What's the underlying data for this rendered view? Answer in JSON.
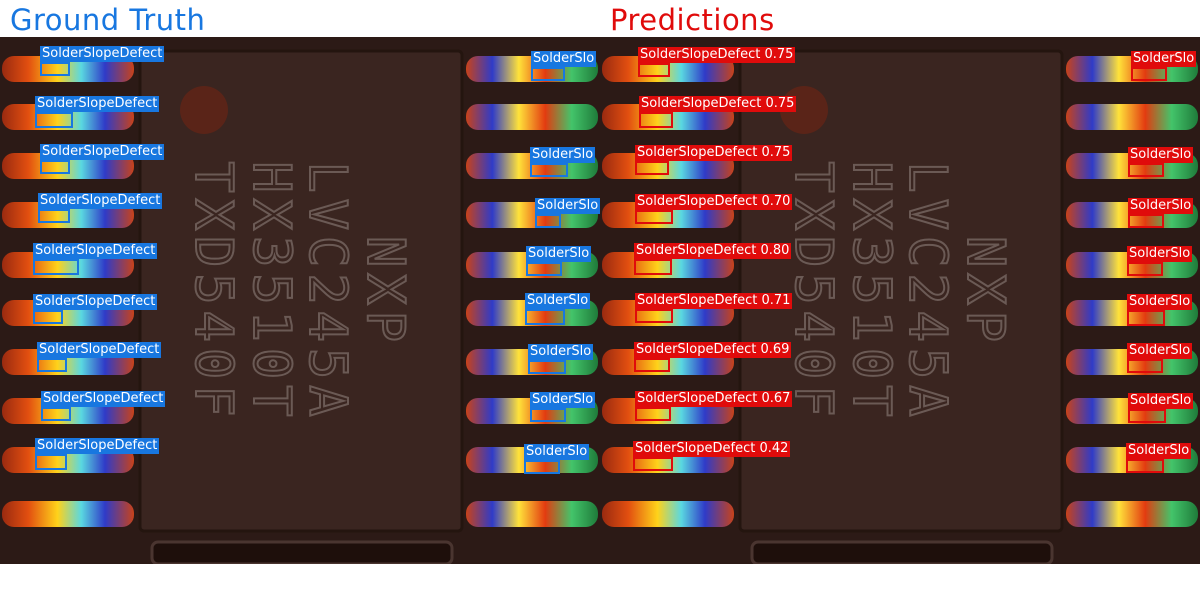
{
  "titles": {
    "ground_truth": "Ground Truth",
    "predictions": "Predictions"
  },
  "colors": {
    "ground_truth": "#1877e0",
    "predictions": "#e00b0b",
    "board": "#2c1a16",
    "chip": "#3a2520",
    "chip_text": "#6b5a55"
  },
  "chip_marking": [
    "NXP",
    "LVC245A",
    "HX3510T",
    "TXD540F"
  ],
  "ground_truth": {
    "left_label": "SolderSlopeDefect",
    "right_label": "SolderSlo",
    "left_rows": 9,
    "right_rows": 9
  },
  "predictions": {
    "left_labels": [
      "SolderSlopeDefect 0.75",
      "SolderSlopeDefect 0.75",
      "SolderSlopeDefect 0.75",
      "SolderSlopeDefect 0.70",
      "SolderSlopeDefect 0.80",
      "SolderSlopeDefect 0.71",
      "SolderSlopeDefect 0.69",
      "SolderSlopeDefect 0.67",
      "SolderSlopeDefect 0.42"
    ],
    "right_label": "SolderSlo",
    "right_rows": 9
  }
}
